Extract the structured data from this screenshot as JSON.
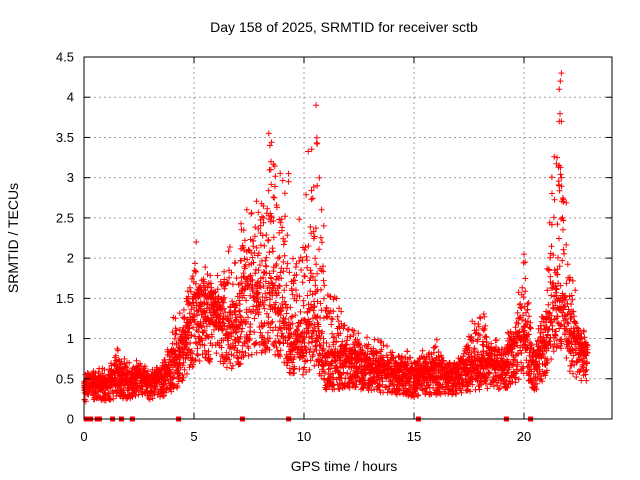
{
  "chart_data": {
    "type": "scatter",
    "title": "Day 158 of 2025, SRMTID for receiver sctb",
    "xlabel": "GPS time / hours",
    "ylabel": "SRMTID / TECUs",
    "xlim": [
      0,
      24
    ],
    "ylim": [
      0,
      4.5
    ],
    "x_ticks": [
      0,
      5,
      10,
      15,
      20
    ],
    "x_tick_labels": [
      "0",
      "5",
      "10",
      "15",
      "20"
    ],
    "y_ticks": [
      0,
      0.5,
      1,
      1.5,
      2,
      2.5,
      3,
      3.5,
      4,
      4.5
    ],
    "y_tick_labels": [
      "0",
      "0.5",
      "1",
      "1.5",
      "2",
      "2.5",
      "3",
      "3.5",
      "4",
      "4.5"
    ],
    "grid": true,
    "colors": {
      "points": "#ff0000",
      "grid": "#a0a0a0",
      "frame": "#000000"
    },
    "marker": "plus",
    "markers_at_zero_hours": [
      0.1,
      0.3,
      0.6,
      0.7,
      1.3,
      1.7,
      2.2,
      4.3,
      7.2,
      9.3,
      15.2,
      19.2,
      20.3
    ],
    "series": [
      {
        "name": "SRMTID",
        "profile_x": [
          0,
          0.5,
          1,
          1.5,
          2,
          2.5,
          3,
          3.5,
          4,
          4.5,
          5,
          5.5,
          6,
          6.5,
          7,
          7.5,
          8,
          8.5,
          9,
          9.5,
          10,
          10.5,
          11,
          11.5,
          12,
          12.5,
          13,
          13.5,
          14,
          14.5,
          15,
          15.5,
          16,
          16.5,
          17,
          17.5,
          18,
          18.5,
          19,
          19.5,
          20,
          20.5,
          21,
          21.5,
          22,
          22.5,
          23
        ],
        "profile_median": [
          0.35,
          0.4,
          0.35,
          0.45,
          0.4,
          0.5,
          0.4,
          0.45,
          0.55,
          0.75,
          1.1,
          1.2,
          1.15,
          1.0,
          1.1,
          1.3,
          1.3,
          1.4,
          1.2,
          0.85,
          0.9,
          1.1,
          0.6,
          0.6,
          0.65,
          0.6,
          0.55,
          0.55,
          0.5,
          0.5,
          0.45,
          0.5,
          0.5,
          0.5,
          0.5,
          0.55,
          0.6,
          0.65,
          0.6,
          0.7,
          0.9,
          0.55,
          0.9,
          1.5,
          1.0,
          0.8,
          0.75
        ],
        "profile_max": [
          0.55,
          0.7,
          0.6,
          0.95,
          0.7,
          0.75,
          0.6,
          0.7,
          1.25,
          1.4,
          2.2,
          1.9,
          1.8,
          2.1,
          2.5,
          2.6,
          2.9,
          3.55,
          3.1,
          2.0,
          3.0,
          3.9,
          1.7,
          1.6,
          1.2,
          1.1,
          1.0,
          1.0,
          0.85,
          0.9,
          0.75,
          0.95,
          1.05,
          0.8,
          0.75,
          1.1,
          1.55,
          1.0,
          1.0,
          1.2,
          2.05,
          0.9,
          1.6,
          4.3,
          2.5,
          1.1,
          1.1
        ],
        "highlight_points": [
          [
            8.4,
            3.55
          ],
          [
            8.45,
            3.4
          ],
          [
            8.5,
            3.2
          ],
          [
            9.3,
            3.05
          ],
          [
            9.3,
            2.95
          ],
          [
            10.55,
            3.9
          ],
          [
            10.6,
            3.42
          ],
          [
            10.7,
            3.0
          ],
          [
            10.6,
            2.9
          ],
          [
            21.7,
            4.3
          ],
          [
            21.65,
            4.2
          ],
          [
            21.6,
            4.1
          ],
          [
            21.7,
            3.7
          ],
          [
            21.6,
            3.7
          ],
          [
            21.5,
            3.25
          ],
          [
            21.6,
            3.15
          ],
          [
            21.7,
            3.0
          ],
          [
            21.6,
            2.9
          ],
          [
            20.0,
            2.05
          ],
          [
            20.05,
            1.95
          ],
          [
            5.1,
            2.2
          ],
          [
            7.4,
            2.6
          ],
          [
            7.6,
            2.55
          ],
          [
            10.8,
            2.6
          ],
          [
            10.9,
            2.4
          ],
          [
            21.8,
            2.7
          ],
          [
            21.75,
            2.5
          ]
        ]
      }
    ]
  }
}
